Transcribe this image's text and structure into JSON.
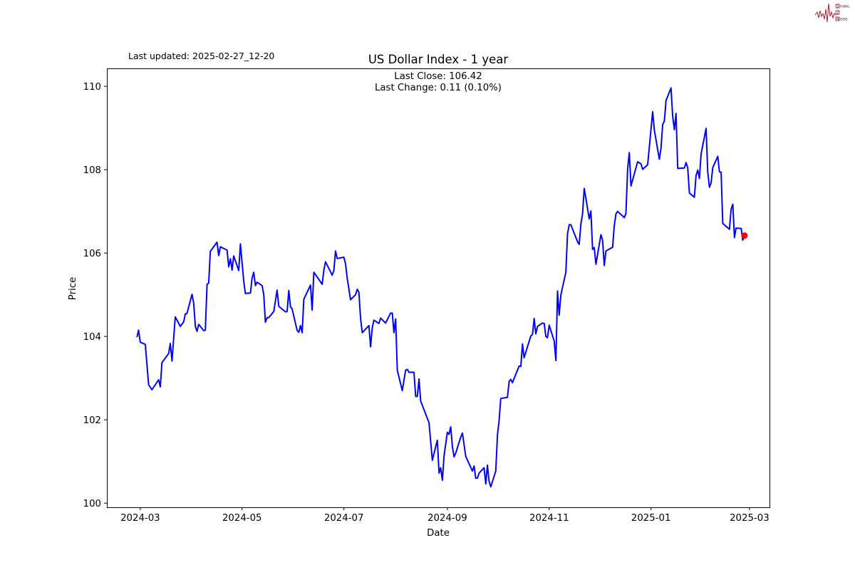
{
  "logo": {
    "text": "SIGNAL 2 NOISE",
    "colors": {
      "wave": "#b01c2e",
      "box": "#b01c2e"
    }
  },
  "chart_data": {
    "type": "line",
    "title": "US Dollar Index - 1 year",
    "updated": "Last updated: 2025-02-27_12-20",
    "annotations": [
      "Last Close: 106.42",
      "Last Change: 0.11 (0.10%)"
    ],
    "xlabel": "Date",
    "ylabel": "Price",
    "xlim": [
      "2024-02-10",
      "2025-03-13"
    ],
    "ylim": [
      99.9,
      110.43
    ],
    "grid": false,
    "line_color": "#0000ff",
    "marker_color": "#ff0000",
    "x_ticks": [
      {
        "date": "2024-03-01",
        "label": "2024-03"
      },
      {
        "date": "2024-05-01",
        "label": "2024-05"
      },
      {
        "date": "2024-07-01",
        "label": "2024-07"
      },
      {
        "date": "2024-09-01",
        "label": "2024-09"
      },
      {
        "date": "2024-11-01",
        "label": "2024-11"
      },
      {
        "date": "2025-01-01",
        "label": "2025-01"
      },
      {
        "date": "2025-03-01",
        "label": "2025-03"
      }
    ],
    "y_ticks": [
      {
        "value": 100,
        "label": "100"
      },
      {
        "value": 102,
        "label": "102"
      },
      {
        "value": 104,
        "label": "104"
      },
      {
        "value": 106,
        "label": "106"
      },
      {
        "value": 108,
        "label": "108"
      },
      {
        "value": 110,
        "label": "110"
      }
    ],
    "last_point": {
      "date": "2025-02-26",
      "value": 106.42
    },
    "series": [
      {
        "points": [
          [
            "2024-02-28",
            103.98
          ],
          [
            "2024-02-29",
            104.15
          ],
          [
            "2024-03-01",
            103.86
          ],
          [
            "2024-03-04",
            103.81
          ],
          [
            "2024-03-06",
            102.84
          ],
          [
            "2024-03-08",
            102.72
          ],
          [
            "2024-03-12",
            102.96
          ],
          [
            "2024-03-13",
            102.79
          ],
          [
            "2024-03-14",
            103.37
          ],
          [
            "2024-03-18",
            103.59
          ],
          [
            "2024-03-19",
            103.83
          ],
          [
            "2024-03-20",
            103.41
          ],
          [
            "2024-03-22",
            104.47
          ],
          [
            "2024-03-25",
            104.24
          ],
          [
            "2024-03-27",
            104.35
          ],
          [
            "2024-03-28",
            104.54
          ],
          [
            "2024-03-29",
            104.55
          ],
          [
            "2024-04-01",
            105.01
          ],
          [
            "2024-04-02",
            104.8
          ],
          [
            "2024-04-03",
            104.24
          ],
          [
            "2024-04-04",
            104.12
          ],
          [
            "2024-04-05",
            104.29
          ],
          [
            "2024-04-08",
            104.14
          ],
          [
            "2024-04-09",
            104.15
          ],
          [
            "2024-04-10",
            105.25
          ],
          [
            "2024-04-11",
            105.28
          ],
          [
            "2024-04-12",
            106.04
          ],
          [
            "2024-04-16",
            106.26
          ],
          [
            "2024-04-17",
            105.94
          ],
          [
            "2024-04-18",
            106.15
          ],
          [
            "2024-04-22",
            106.07
          ],
          [
            "2024-04-23",
            105.67
          ],
          [
            "2024-04-24",
            105.86
          ],
          [
            "2024-04-25",
            105.59
          ],
          [
            "2024-04-26",
            105.93
          ],
          [
            "2024-04-29",
            105.58
          ],
          [
            "2024-04-30",
            106.22
          ],
          [
            "2024-05-02",
            105.32
          ],
          [
            "2024-05-03",
            105.03
          ],
          [
            "2024-05-06",
            105.04
          ],
          [
            "2024-05-07",
            105.4
          ],
          [
            "2024-05-08",
            105.54
          ],
          [
            "2024-05-09",
            105.22
          ],
          [
            "2024-05-10",
            105.3
          ],
          [
            "2024-05-13",
            105.22
          ],
          [
            "2024-05-14",
            105.0
          ],
          [
            "2024-05-15",
            104.34
          ],
          [
            "2024-05-16",
            104.45
          ],
          [
            "2024-05-17",
            104.45
          ],
          [
            "2024-05-20",
            104.6
          ],
          [
            "2024-05-22",
            105.11
          ],
          [
            "2024-05-23",
            104.72
          ],
          [
            "2024-05-27",
            104.59
          ],
          [
            "2024-05-28",
            104.6
          ],
          [
            "2024-05-29",
            105.1
          ],
          [
            "2024-05-30",
            104.71
          ],
          [
            "2024-05-31",
            104.66
          ],
          [
            "2024-06-03",
            104.14
          ],
          [
            "2024-06-04",
            104.1
          ],
          [
            "2024-06-05",
            104.26
          ],
          [
            "2024-06-06",
            104.09
          ],
          [
            "2024-06-07",
            104.89
          ],
          [
            "2024-06-11",
            105.23
          ],
          [
            "2024-06-12",
            104.63
          ],
          [
            "2024-06-13",
            105.54
          ],
          [
            "2024-06-18",
            105.25
          ],
          [
            "2024-06-19",
            105.59
          ],
          [
            "2024-06-20",
            105.79
          ],
          [
            "2024-06-24",
            105.47
          ],
          [
            "2024-06-25",
            105.58
          ],
          [
            "2024-06-26",
            106.05
          ],
          [
            "2024-06-27",
            105.87
          ],
          [
            "2024-07-01",
            105.9
          ],
          [
            "2024-07-02",
            105.74
          ],
          [
            "2024-07-03",
            105.4
          ],
          [
            "2024-07-05",
            104.88
          ],
          [
            "2024-07-08",
            105.0
          ],
          [
            "2024-07-09",
            105.13
          ],
          [
            "2024-07-10",
            105.06
          ],
          [
            "2024-07-11",
            104.43
          ],
          [
            "2024-07-12",
            104.09
          ],
          [
            "2024-07-16",
            104.26
          ],
          [
            "2024-07-17",
            103.75
          ],
          [
            "2024-07-18",
            104.21
          ],
          [
            "2024-07-19",
            104.39
          ],
          [
            "2024-07-22",
            104.31
          ],
          [
            "2024-07-23",
            104.44
          ],
          [
            "2024-07-26",
            104.32
          ],
          [
            "2024-07-29",
            104.56
          ],
          [
            "2024-07-30",
            104.56
          ],
          [
            "2024-07-31",
            104.09
          ],
          [
            "2024-08-01",
            104.42
          ],
          [
            "2024-08-02",
            103.19
          ],
          [
            "2024-08-05",
            102.7
          ],
          [
            "2024-08-07",
            103.19
          ],
          [
            "2024-08-08",
            103.21
          ],
          [
            "2024-08-09",
            103.14
          ],
          [
            "2024-08-12",
            103.14
          ],
          [
            "2024-08-13",
            102.56
          ],
          [
            "2024-08-14",
            102.56
          ],
          [
            "2024-08-15",
            102.98
          ],
          [
            "2024-08-16",
            102.45
          ],
          [
            "2024-08-21",
            101.93
          ],
          [
            "2024-08-23",
            101.03
          ],
          [
            "2024-08-26",
            101.51
          ],
          [
            "2024-08-27",
            100.72
          ],
          [
            "2024-08-28",
            100.85
          ],
          [
            "2024-08-29",
            100.55
          ],
          [
            "2024-08-30",
            101.13
          ],
          [
            "2024-09-01",
            101.7
          ],
          [
            "2024-09-02",
            101.65
          ],
          [
            "2024-09-03",
            101.83
          ],
          [
            "2024-09-04",
            101.36
          ],
          [
            "2024-09-05",
            101.11
          ],
          [
            "2024-09-06",
            101.2
          ],
          [
            "2024-09-09",
            101.58
          ],
          [
            "2024-09-10",
            101.68
          ],
          [
            "2024-09-12",
            101.12
          ],
          [
            "2024-09-16",
            100.77
          ],
          [
            "2024-09-17",
            100.89
          ],
          [
            "2024-09-18",
            100.6
          ],
          [
            "2024-09-19",
            100.6
          ],
          [
            "2024-09-20",
            100.72
          ],
          [
            "2024-09-23",
            100.85
          ],
          [
            "2024-09-24",
            100.46
          ],
          [
            "2024-09-25",
            100.91
          ],
          [
            "2024-09-26",
            100.53
          ],
          [
            "2024-09-27",
            100.39
          ],
          [
            "2024-09-30",
            100.77
          ],
          [
            "2024-10-01",
            101.64
          ],
          [
            "2024-10-02",
            101.98
          ],
          [
            "2024-10-03",
            102.51
          ],
          [
            "2024-10-07",
            102.54
          ],
          [
            "2024-10-08",
            102.92
          ],
          [
            "2024-10-09",
            102.97
          ],
          [
            "2024-10-10",
            102.89
          ],
          [
            "2024-10-14",
            103.29
          ],
          [
            "2024-10-15",
            103.28
          ],
          [
            "2024-10-16",
            103.82
          ],
          [
            "2024-10-17",
            103.49
          ],
          [
            "2024-10-21",
            104.01
          ],
          [
            "2024-10-22",
            104.05
          ],
          [
            "2024-10-23",
            104.43
          ],
          [
            "2024-10-24",
            104.06
          ],
          [
            "2024-10-25",
            104.24
          ],
          [
            "2024-10-28",
            104.32
          ],
          [
            "2024-10-29",
            104.31
          ],
          [
            "2024-10-30",
            104.0
          ],
          [
            "2024-10-31",
            103.97
          ],
          [
            "2024-11-01",
            104.27
          ],
          [
            "2024-11-04",
            103.89
          ],
          [
            "2024-11-05",
            103.42
          ],
          [
            "2024-11-06",
            105.09
          ],
          [
            "2024-11-07",
            104.51
          ],
          [
            "2024-11-08",
            105.0
          ],
          [
            "2024-11-11",
            105.54
          ],
          [
            "2024-11-12",
            106.46
          ],
          [
            "2024-11-13",
            106.68
          ],
          [
            "2024-11-14",
            106.68
          ],
          [
            "2024-11-18",
            106.27
          ],
          [
            "2024-11-19",
            106.21
          ],
          [
            "2024-11-20",
            106.7
          ],
          [
            "2024-11-21",
            106.94
          ],
          [
            "2024-11-22",
            107.55
          ],
          [
            "2024-11-25",
            106.82
          ],
          [
            "2024-11-26",
            107.01
          ],
          [
            "2024-11-27",
            106.09
          ],
          [
            "2024-11-28",
            106.13
          ],
          [
            "2024-11-29",
            105.73
          ],
          [
            "2024-12-02",
            106.44
          ],
          [
            "2024-12-03",
            106.31
          ],
          [
            "2024-12-04",
            105.7
          ],
          [
            "2024-12-05",
            106.05
          ],
          [
            "2024-12-09",
            106.14
          ],
          [
            "2024-12-10",
            106.65
          ],
          [
            "2024-12-11",
            106.94
          ],
          [
            "2024-12-12",
            107.0
          ],
          [
            "2024-12-16",
            106.85
          ],
          [
            "2024-12-17",
            106.95
          ],
          [
            "2024-12-18",
            108.02
          ],
          [
            "2024-12-19",
            108.41
          ],
          [
            "2024-12-20",
            107.61
          ],
          [
            "2024-12-24",
            108.19
          ],
          [
            "2024-12-26",
            108.14
          ],
          [
            "2024-12-27",
            108.01
          ],
          [
            "2024-12-30",
            108.12
          ],
          [
            "2025-01-02",
            109.39
          ],
          [
            "2025-01-03",
            108.95
          ],
          [
            "2025-01-06",
            108.25
          ],
          [
            "2025-01-07",
            108.51
          ],
          [
            "2025-01-08",
            109.09
          ],
          [
            "2025-01-09",
            109.16
          ],
          [
            "2025-01-10",
            109.66
          ],
          [
            "2025-01-13",
            109.96
          ],
          [
            "2025-01-14",
            109.28
          ],
          [
            "2025-01-15",
            108.96
          ],
          [
            "2025-01-16",
            109.35
          ],
          [
            "2025-01-17",
            108.03
          ],
          [
            "2025-01-21",
            108.04
          ],
          [
            "2025-01-22",
            108.17
          ],
          [
            "2025-01-23",
            108.05
          ],
          [
            "2025-01-24",
            107.44
          ],
          [
            "2025-01-27",
            107.34
          ],
          [
            "2025-01-28",
            107.86
          ],
          [
            "2025-01-29",
            107.99
          ],
          [
            "2025-01-30",
            107.79
          ],
          [
            "2025-01-31",
            108.38
          ],
          [
            "2025-02-03",
            108.99
          ],
          [
            "2025-02-04",
            107.95
          ],
          [
            "2025-02-05",
            107.58
          ],
          [
            "2025-02-06",
            107.68
          ],
          [
            "2025-02-07",
            108.05
          ],
          [
            "2025-02-10",
            108.32
          ],
          [
            "2025-02-11",
            107.95
          ],
          [
            "2025-02-12",
            107.94
          ],
          [
            "2025-02-13",
            106.71
          ],
          [
            "2025-02-17",
            106.57
          ],
          [
            "2025-02-18",
            107.05
          ],
          [
            "2025-02-19",
            107.17
          ],
          [
            "2025-02-20",
            106.37
          ],
          [
            "2025-02-21",
            106.6
          ],
          [
            "2025-02-24",
            106.59
          ],
          [
            "2025-02-25",
            106.31
          ],
          [
            "2025-02-26",
            106.42
          ]
        ]
      }
    ]
  }
}
